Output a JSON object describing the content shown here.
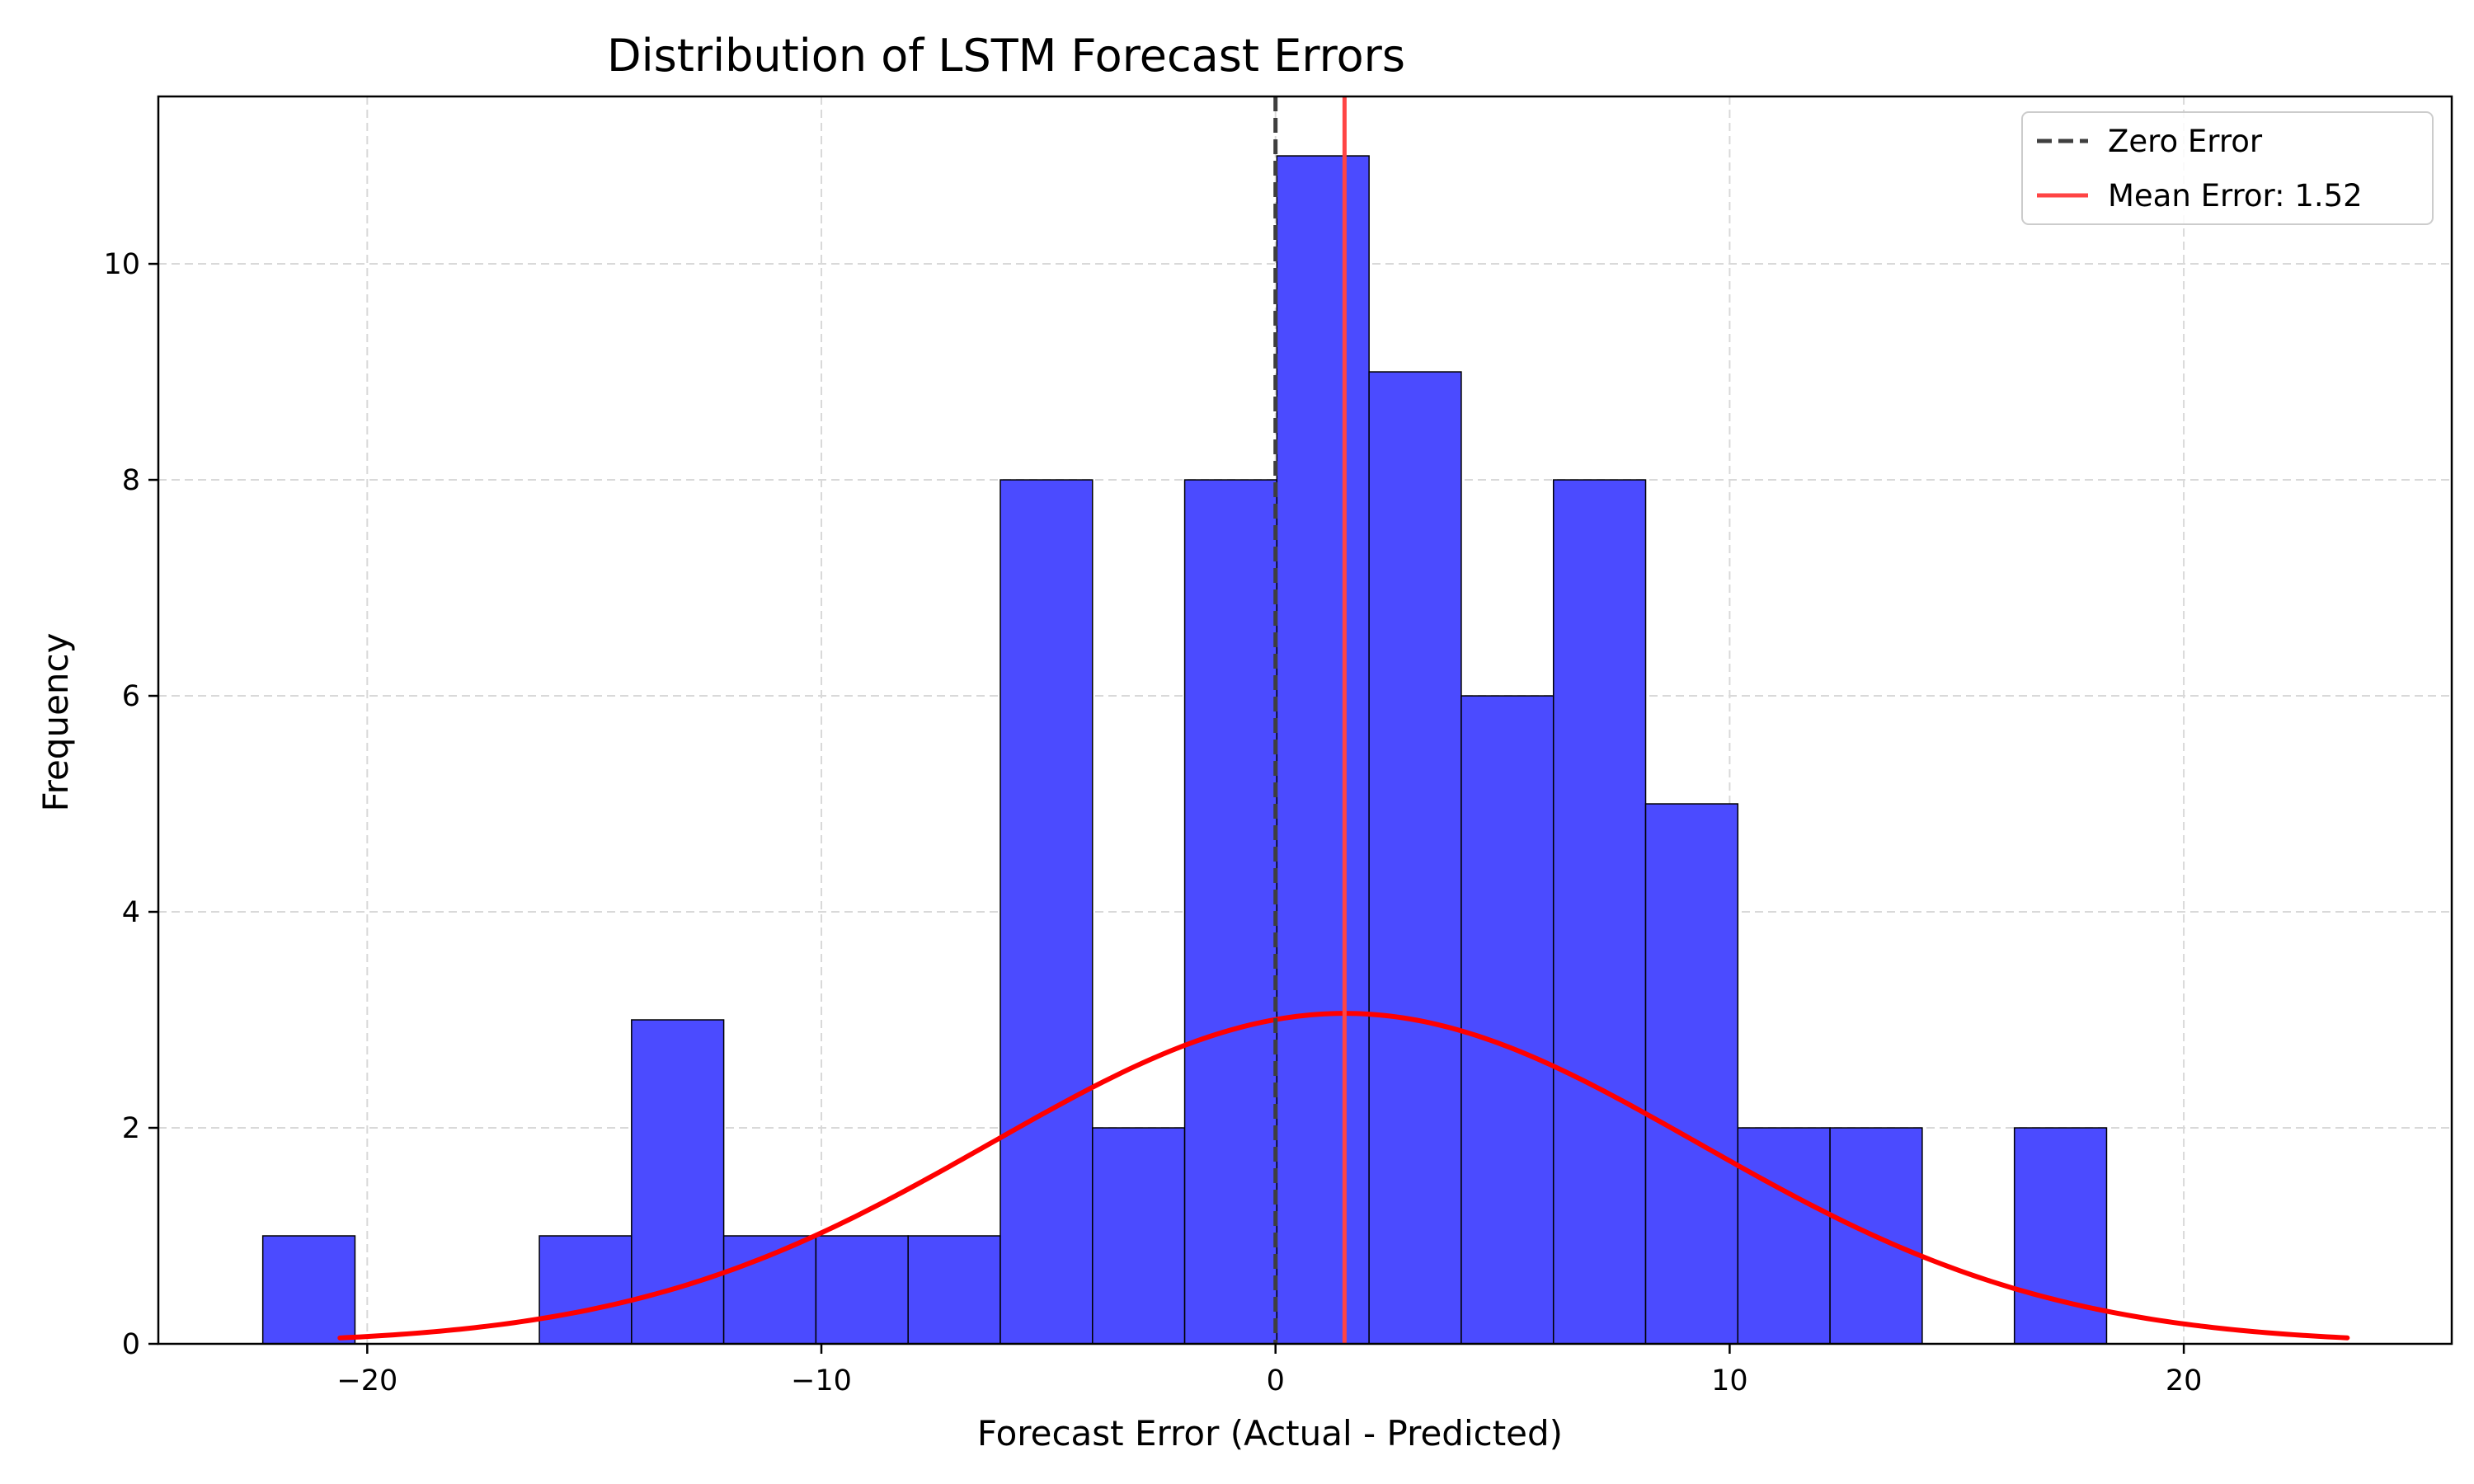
{
  "chart_data": {
    "type": "bar",
    "title": "Distribution of LSTM Forecast Errors",
    "xlabel": "Forecast Error (Actual - Predicted)",
    "ylabel": "Frequency",
    "xlim": [
      -24.6,
      25.9
    ],
    "ylim": [
      0,
      11.55
    ],
    "xticks": [
      -20,
      -10,
      0,
      10,
      20
    ],
    "xtick_labels": [
      "−20",
      "−10",
      "0",
      "10",
      "20"
    ],
    "yticks": [
      0,
      2,
      4,
      6,
      8,
      10
    ],
    "ytick_labels": [
      "0",
      "2",
      "4",
      "6",
      "8",
      "10"
    ],
    "grid": true,
    "legend_position": "top-right",
    "bar_color": "#4b4bff",
    "bin_edges": [
      -22.3,
      -20.27,
      -18.24,
      -16.21,
      -14.18,
      -12.15,
      -10.12,
      -8.09,
      -6.06,
      -4.03,
      -2.0,
      0.03,
      2.06,
      4.09,
      6.12,
      8.15,
      10.18,
      12.21,
      14.24,
      16.27,
      18.3
    ],
    "counts": [
      1,
      0,
      0,
      1,
      3,
      1,
      1,
      1,
      8,
      2,
      8,
      11,
      9,
      6,
      8,
      5,
      2,
      2,
      0,
      2
    ],
    "series": [
      {
        "name": "Zero Error",
        "kind": "vline",
        "x": 0,
        "color": "#3f3f3f",
        "style": "dashed"
      },
      {
        "name": "Mean Error: 1.52",
        "kind": "vline",
        "x": 1.52,
        "color": "#ff4444",
        "style": "solid"
      }
    ],
    "density_curve": {
      "color": "#ff0000",
      "mean": 1.52,
      "std": 7.8,
      "peak": 3.06,
      "x_start": -20.6,
      "x_end": 23.6
    }
  }
}
